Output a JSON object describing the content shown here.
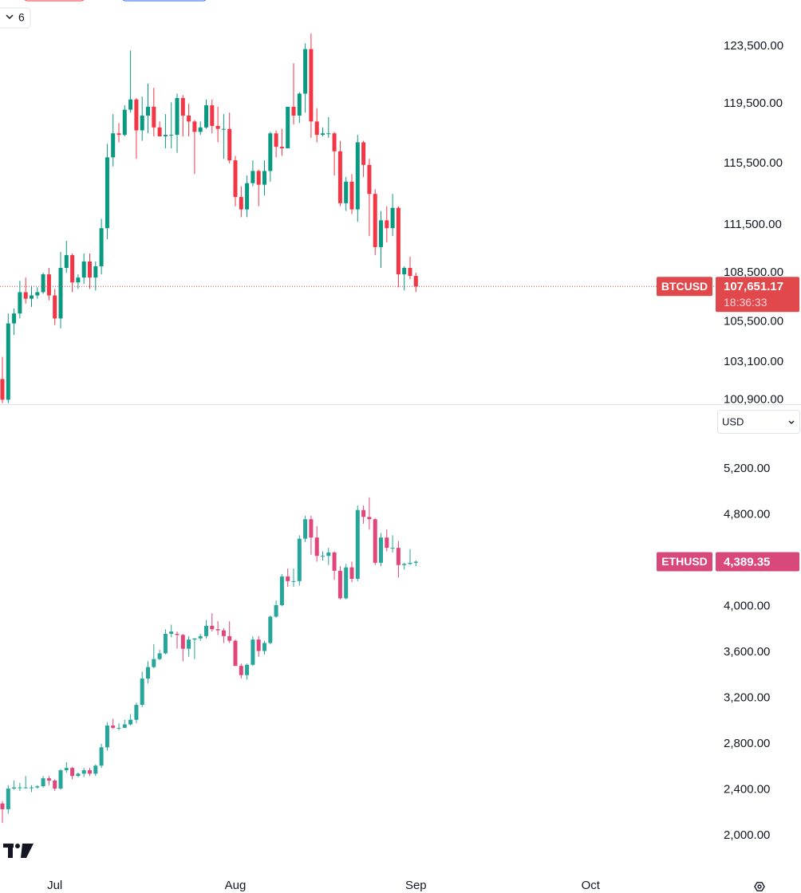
{
  "ui": {
    "badge": "6",
    "currency": "USD"
  },
  "chart_data": [
    {
      "type": "candlestick",
      "name": "BTCUSD",
      "log_scale": true,
      "up_color": "#089981",
      "down_color": "#f23645",
      "label_color": "#e0484c",
      "last": {
        "value": 107651.17,
        "label": "107,651.17"
      },
      "countdown": "18:36:33",
      "ylim": [
        100640,
        126810
      ],
      "yticks": [
        {
          "value": 123500,
          "label": "123,500.00"
        },
        {
          "value": 119500,
          "label": "119,500.00"
        },
        {
          "value": 115500,
          "label": "115,500.00"
        },
        {
          "value": 111500,
          "label": "111,500.00"
        },
        {
          "value": 108500,
          "label": "108,500.00"
        },
        {
          "value": 105500,
          "label": "105,500.00"
        },
        {
          "value": 103100,
          "label": "103,100.00"
        },
        {
          "value": 100900,
          "label": "100,900.00"
        }
      ],
      "open": [
        102100,
        100900,
        105400,
        106000,
        107300,
        106900,
        107100,
        107300,
        108400,
        107100,
        105700,
        108800,
        109600,
        107900,
        108200,
        109200,
        108200,
        108900,
        111300,
        115900,
        117500,
        117400,
        119100,
        119800,
        117700,
        118700,
        119300,
        117900,
        117300,
        117400,
        117400,
        119900,
        118700,
        118300,
        117600,
        117900,
        119400,
        118000,
        117800,
        117800,
        115700,
        113300,
        112500,
        114200,
        115000,
        114100,
        115000,
        117500,
        116600,
        116500,
        119300,
        118700,
        120200,
        123300,
        118300,
        117400,
        117500,
        117500,
        116300,
        112900,
        114300,
        112500,
        116900,
        115400,
        113500,
        110100,
        111800,
        111300,
        112600,
        108400,
        108800,
        108300
      ],
      "high": [
        103400,
        106000,
        106300,
        108000,
        108200,
        107700,
        107600,
        108500,
        108800,
        107500,
        109800,
        110500,
        109700,
        108400,
        109700,
        109700,
        109200,
        111900,
        116800,
        118800,
        118200,
        119400,
        123200,
        119900,
        120000,
        120900,
        120600,
        118300,
        118800,
        119600,
        120200,
        120100,
        119500,
        118400,
        118300,
        119800,
        119800,
        119300,
        118800,
        118900,
        116000,
        114000,
        114700,
        115700,
        115100,
        115700,
        117600,
        117700,
        117800,
        119300,
        122300,
        120300,
        123700,
        124400,
        119200,
        117900,
        118600,
        117600,
        117000,
        114600,
        114800,
        117400,
        117000,
        115800,
        113800,
        112400,
        112700,
        113500,
        112700,
        108900,
        109500,
        108500
      ],
      "low": [
        100700,
        100700,
        104700,
        105700,
        106600,
        106400,
        106900,
        107200,
        106800,
        105300,
        105100,
        108500,
        107300,
        107500,
        107800,
        107500,
        107400,
        108400,
        110600,
        115300,
        116900,
        117300,
        118900,
        115800,
        117000,
        117500,
        117300,
        117300,
        116500,
        116500,
        116200,
        117300,
        117300,
        114800,
        117400,
        117800,
        117500,
        116900,
        115800,
        115500,
        112700,
        112000,
        112000,
        114000,
        112700,
        113400,
        114300,
        115900,
        116000,
        116500,
        118100,
        118200,
        118900,
        117200,
        116900,
        117300,
        117200,
        114700,
        112700,
        112400,
        112200,
        111700,
        114600,
        110800,
        109600,
        108800,
        110400,
        110800,
        107600,
        107400,
        108100,
        107300
      ],
      "close": [
        100900,
        105400,
        106000,
        107300,
        106900,
        107100,
        107300,
        108400,
        107100,
        105700,
        108800,
        109600,
        107900,
        108200,
        109200,
        108200,
        108900,
        111300,
        115900,
        117500,
        117400,
        119100,
        119800,
        117700,
        118700,
        119300,
        117900,
        117300,
        117400,
        117400,
        119900,
        118700,
        118300,
        117600,
        117900,
        119400,
        118000,
        117800,
        117800,
        115700,
        113300,
        112500,
        114200,
        115000,
        114100,
        115000,
        117500,
        116600,
        116500,
        119300,
        118700,
        120200,
        123300,
        118300,
        117400,
        117500,
        117500,
        116300,
        112900,
        114300,
        112500,
        116900,
        115400,
        113500,
        110100,
        111800,
        111300,
        112600,
        108400,
        108800,
        108300,
        107651.17
      ]
    },
    {
      "type": "candlestick",
      "name": "ETHUSD",
      "log_scale": false,
      "up_color": "#26a69a",
      "down_color": "#e0457b",
      "label_color": "#d9487b",
      "last": {
        "value": 4389.35,
        "label": "4,389.35"
      },
      "ylim": [
        1673,
        5763
      ],
      "yticks": [
        {
          "value": 5200,
          "label": "5,200.00"
        },
        {
          "value": 4800,
          "label": "4,800.00"
        },
        {
          "value": 4000,
          "label": "4,000.00"
        },
        {
          "value": 3600,
          "label": "3,600.00"
        },
        {
          "value": 3200,
          "label": "3,200.00"
        },
        {
          "value": 2800,
          "label": "2,800.00"
        },
        {
          "value": 2400,
          "label": "2,400.00"
        },
        {
          "value": 2000,
          "label": "2,000.00"
        }
      ],
      "xticks": [
        {
          "value": 9,
          "label": "Jul"
        },
        {
          "value": 40,
          "label": "Aug"
        },
        {
          "value": 71,
          "label": "Sep"
        },
        {
          "value": 101,
          "label": "Oct"
        }
      ],
      "open": [
        2280,
        2230,
        2410,
        2420,
        2420,
        2420,
        2420,
        2430,
        2500,
        2480,
        2410,
        2570,
        2590,
        2520,
        2540,
        2570,
        2540,
        2610,
        2770,
        2960,
        2940,
        2940,
        2970,
        3010,
        3140,
        3370,
        3470,
        3540,
        3590,
        3760,
        3760,
        3750,
        3630,
        3710,
        3720,
        3740,
        3830,
        3800,
        3790,
        3740,
        3700,
        3480,
        3400,
        3490,
        3710,
        3610,
        3680,
        3910,
        4010,
        4260,
        4220,
        4220,
        4590,
        4760,
        4600,
        4440,
        4440,
        4470,
        4310,
        4070,
        4340,
        4240,
        4840,
        4780,
        4760,
        4380,
        4600,
        4510,
        4510,
        4360,
        4370,
        4380
      ],
      "high": [
        2300,
        2440,
        2480,
        2460,
        2520,
        2440,
        2440,
        2520,
        2520,
        2490,
        2580,
        2640,
        2600,
        2550,
        2590,
        2590,
        2620,
        2800,
        2990,
        3020,
        2980,
        3010,
        3060,
        3160,
        3430,
        3520,
        3670,
        3620,
        3800,
        3840,
        3780,
        3760,
        3740,
        3720,
        3760,
        3880,
        3940,
        3870,
        3810,
        3870,
        3710,
        3500,
        3500,
        3740,
        3740,
        3700,
        3920,
        4050,
        4280,
        4330,
        4330,
        4620,
        4790,
        4790,
        4700,
        4480,
        4510,
        4480,
        4350,
        4370,
        4390,
        4880,
        4880,
        4950,
        4770,
        4640,
        4670,
        4620,
        4570,
        4380,
        4500,
        4400
      ],
      "low": [
        2110,
        2190,
        2400,
        2390,
        2410,
        2380,
        2410,
        2420,
        2440,
        2390,
        2400,
        2550,
        2490,
        2510,
        2510,
        2520,
        2520,
        2590,
        2740,
        2930,
        2920,
        2940,
        2960,
        2980,
        3120,
        3330,
        3460,
        3530,
        3580,
        3730,
        3630,
        3520,
        3560,
        3540,
        3700,
        3720,
        3780,
        3750,
        3680,
        3680,
        3480,
        3370,
        3360,
        3480,
        3560,
        3580,
        3670,
        3900,
        4000,
        4170,
        4170,
        4180,
        4560,
        4450,
        4390,
        4400,
        4360,
        4230,
        4060,
        4060,
        4210,
        4220,
        4720,
        4670,
        4360,
        4350,
        4480,
        4470,
        4250,
        4320,
        4360,
        4350
      ],
      "close": [
        2230,
        2410,
        2420,
        2420,
        2420,
        2420,
        2430,
        2500,
        2480,
        2410,
        2570,
        2590,
        2520,
        2540,
        2570,
        2540,
        2610,
        2770,
        2960,
        2940,
        2940,
        2970,
        3010,
        3140,
        3370,
        3470,
        3540,
        3590,
        3760,
        3780,
        3750,
        3630,
        3710,
        3720,
        3740,
        3830,
        3800,
        3790,
        3740,
        3700,
        3480,
        3400,
        3490,
        3710,
        3610,
        3680,
        3910,
        4010,
        4260,
        4220,
        4220,
        4590,
        4760,
        4600,
        4440,
        4440,
        4470,
        4310,
        4070,
        4340,
        4240,
        4840,
        4780,
        4760,
        4380,
        4600,
        4510,
        4510,
        4360,
        4370,
        4380,
        4389.35
      ]
    }
  ]
}
